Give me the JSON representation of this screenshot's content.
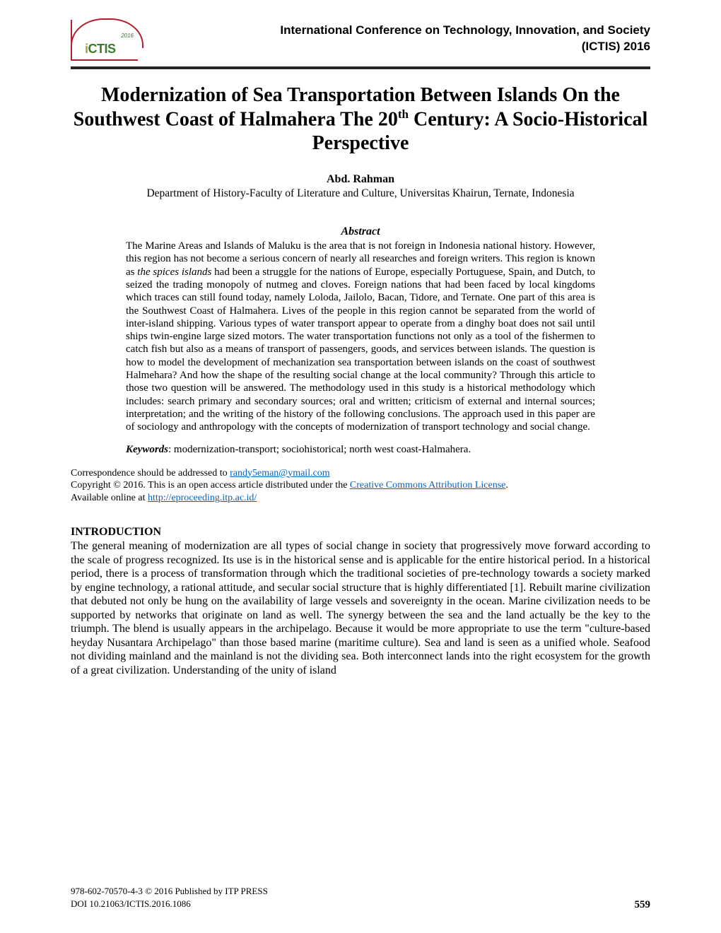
{
  "header": {
    "conference_line1": "International Conference on Technology, Innovation, and Society",
    "conference_line2": "(ICTIS) 2016",
    "logo_year": "2016",
    "logo_i": "i",
    "logo_ctis": "CTIS"
  },
  "paper": {
    "title_html": "Modernization of Sea Transportation Between Islands On the Southwest Coast of Halmahera The 20<sup>th</sup> Century: A Socio-Historical Perspective",
    "author": "Abd. Rahman",
    "affiliation": "Department of History-Faculty of Literature and Culture, Universitas Khairun, Ternate, Indonesia"
  },
  "abstract": {
    "label": "Abstract",
    "body": "The Marine Areas and Islands of Maluku is the area that is not foreign in Indonesia national history. However, this region has not become a serious concern of nearly all researches and foreign writers. This region is known as the spices islands had been a struggle for the nations of Europe, especially Portuguese, Spain, and Dutch, to seized the trading monopoly of nutmeg and cloves. Foreign nations that had been faced by local kingdoms which traces can still found today, namely Loloda, Jailolo, Bacan, Tidore, and Ternate. One part of this area is the Southwest Coast of Halmahera. Lives of the people in this region cannot be separated from the world of inter-island shipping. Various types of water transport appear to operate from a dinghy boat does not sail until ships twin-engine large sized motors. The water transportation functions not only as a tool of the fishermen to catch fish but also as a means of transport of passengers, goods, and services between islands. The question is how to model the development of mechanization sea transportation between islands on the coast of southwest Halmehara? And how the shape of the resulting social change at the local community? Through this article to those two question will be answered. The methodology used in this study is a historical methodology which includes: search primary and secondary sources; oral and written; criticism of external and internal sources; interpretation; and the writing of the history of the following conclusions. The approach used in this paper are of sociology and anthropology with the concepts of modernization of transport technology and social change.",
    "keywords_label": "Keywords",
    "keywords_text": ": modernization-transport; sociohistorical; north west coast-Halmahera."
  },
  "correspondence": {
    "line1_prefix": "Correspondence should be addressed to ",
    "email": "randy5eman@ymail.com",
    "line2_prefix": "Copyright © 2016. This is an open access article distributed under the ",
    "license_text": "Creative Commons Attribution License",
    "line2_suffix": ".",
    "line3_prefix": "Available online at ",
    "url": "http://eproceeding.itp.ac.id/"
  },
  "introduction": {
    "heading": "INTRODUCTION",
    "body": "The general meaning of modernization are all types of social change in society that progressively move forward according to the scale of progress recognized. Its use is in the historical sense and is applicable for the entire historical period. In a historical period, there is a process of transformation through which the traditional societies of pre-technology towards a society marked by engine technology, a rational attitude, and secular social structure that is highly differentiated [1]. Rebuilt marine civilization that debuted not only be hung on the availability of large vessels and sovereignty in the ocean. Marine civilization needs to be supported by networks that originate on land as well. The synergy between the sea and the land actually be the key to the triumph. The blend is usually appears in the archipelago. Because it would be more appropriate to use the term \"culture-based heyday Nusantara Archipelago\" than those based marine (maritime culture). Sea and land is seen as a unified whole. Seafood not dividing mainland and the mainland is not the dividing sea. Both interconnect lands into the right ecosystem for the growth of a great civilization. Understanding of the unity of island"
  },
  "footer": {
    "isbn": "978-602-70570-4-3 ",
    "publisher": "© 2016 Published by ITP PRESS",
    "doi": "DOI 10.21063/ICTIS.2016.1086",
    "page": "559"
  },
  "colors": {
    "link": "#0563c1",
    "rule": "#262626",
    "logo_green": "#3a7a2a",
    "logo_border": "#b02030"
  }
}
